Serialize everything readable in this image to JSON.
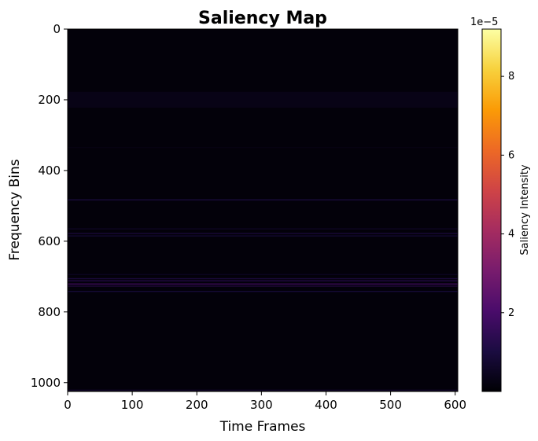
{
  "chart_data": {
    "type": "heatmap",
    "title": "Saliency Map",
    "xlabel": "Time Frames",
    "ylabel": "Frequency Bins",
    "xlim": [
      0,
      604
    ],
    "ylim": [
      1025,
      0
    ],
    "xticks": [
      0,
      100,
      200,
      300,
      400,
      500,
      600
    ],
    "yticks": [
      0,
      200,
      400,
      600,
      800,
      1000
    ],
    "colormap": "inferno",
    "background_value": 0.1,
    "bands": [
      {
        "center": 200,
        "width": 45,
        "value": 0.35
      },
      {
        "center": 335,
        "width": 2,
        "value": 0.3
      },
      {
        "center": 483,
        "width": 4,
        "value": 0.9
      },
      {
        "center": 565,
        "width": 3,
        "value": 0.6
      },
      {
        "center": 578,
        "width": 3,
        "value": 1.1
      },
      {
        "center": 585,
        "width": 3,
        "value": 0.9
      },
      {
        "center": 694,
        "width": 2,
        "value": 0.7
      },
      {
        "center": 706,
        "width": 3,
        "value": 1.1
      },
      {
        "center": 712,
        "width": 3,
        "value": 1.4
      },
      {
        "center": 721,
        "width": 3,
        "value": 2.0
      },
      {
        "center": 727,
        "width": 2,
        "value": 1.5
      },
      {
        "center": 742,
        "width": 3,
        "value": 1.0
      },
      {
        "center": 1021,
        "width": 2,
        "value": 0.9
      }
    ],
    "colorbar": {
      "label": "Saliency Intensity",
      "min": 0.0,
      "max": 9.2,
      "ticks": [
        2,
        4,
        6,
        8
      ],
      "offset_text": "1e−5"
    }
  },
  "colors": {
    "inferno": [
      "#000004",
      "#1b0c41",
      "#4a0c6b",
      "#781c6d",
      "#a52c60",
      "#cf4446",
      "#ed6925",
      "#fb9b06",
      "#f7d13d",
      "#fcffa4"
    ]
  }
}
